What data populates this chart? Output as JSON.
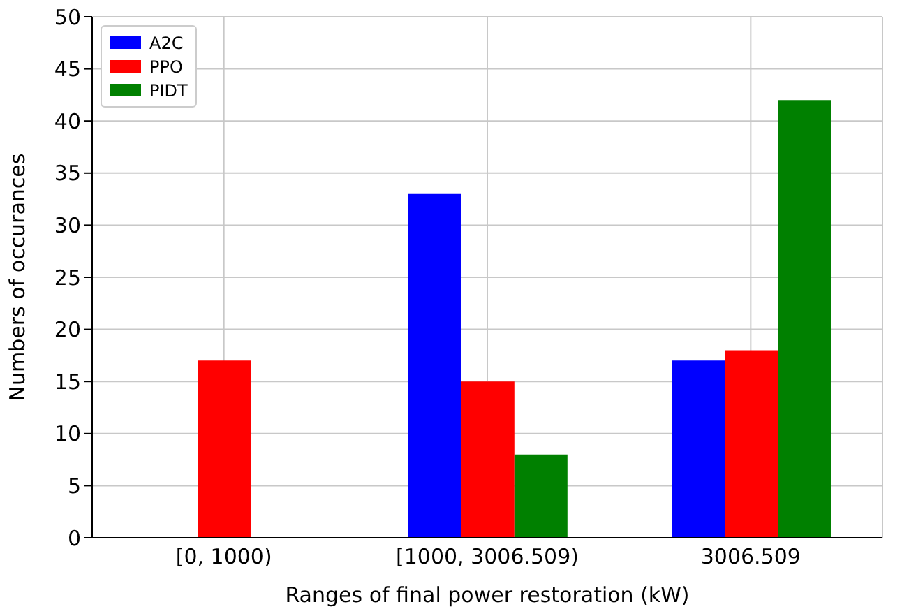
{
  "chart_data": {
    "type": "bar",
    "xlabel": "Ranges of final power restoration (kW)",
    "ylabel": "Numbers of occurances",
    "categories": [
      "[0, 1000)",
      "[1000, 3006.509)",
      "3006.509"
    ],
    "series": [
      {
        "name": "A2C",
        "color": "#0000ff",
        "values": [
          0,
          33,
          17
        ]
      },
      {
        "name": "PPO",
        "color": "#ff0000",
        "values": [
          17,
          15,
          18
        ]
      },
      {
        "name": "PIDT",
        "color": "#008000",
        "values": [
          0,
          8,
          42
        ]
      }
    ],
    "ylim": [
      0,
      50
    ],
    "yticks": [
      0,
      5,
      10,
      15,
      20,
      25,
      30,
      35,
      40,
      45,
      50
    ],
    "grid": true,
    "legend": "top left"
  }
}
